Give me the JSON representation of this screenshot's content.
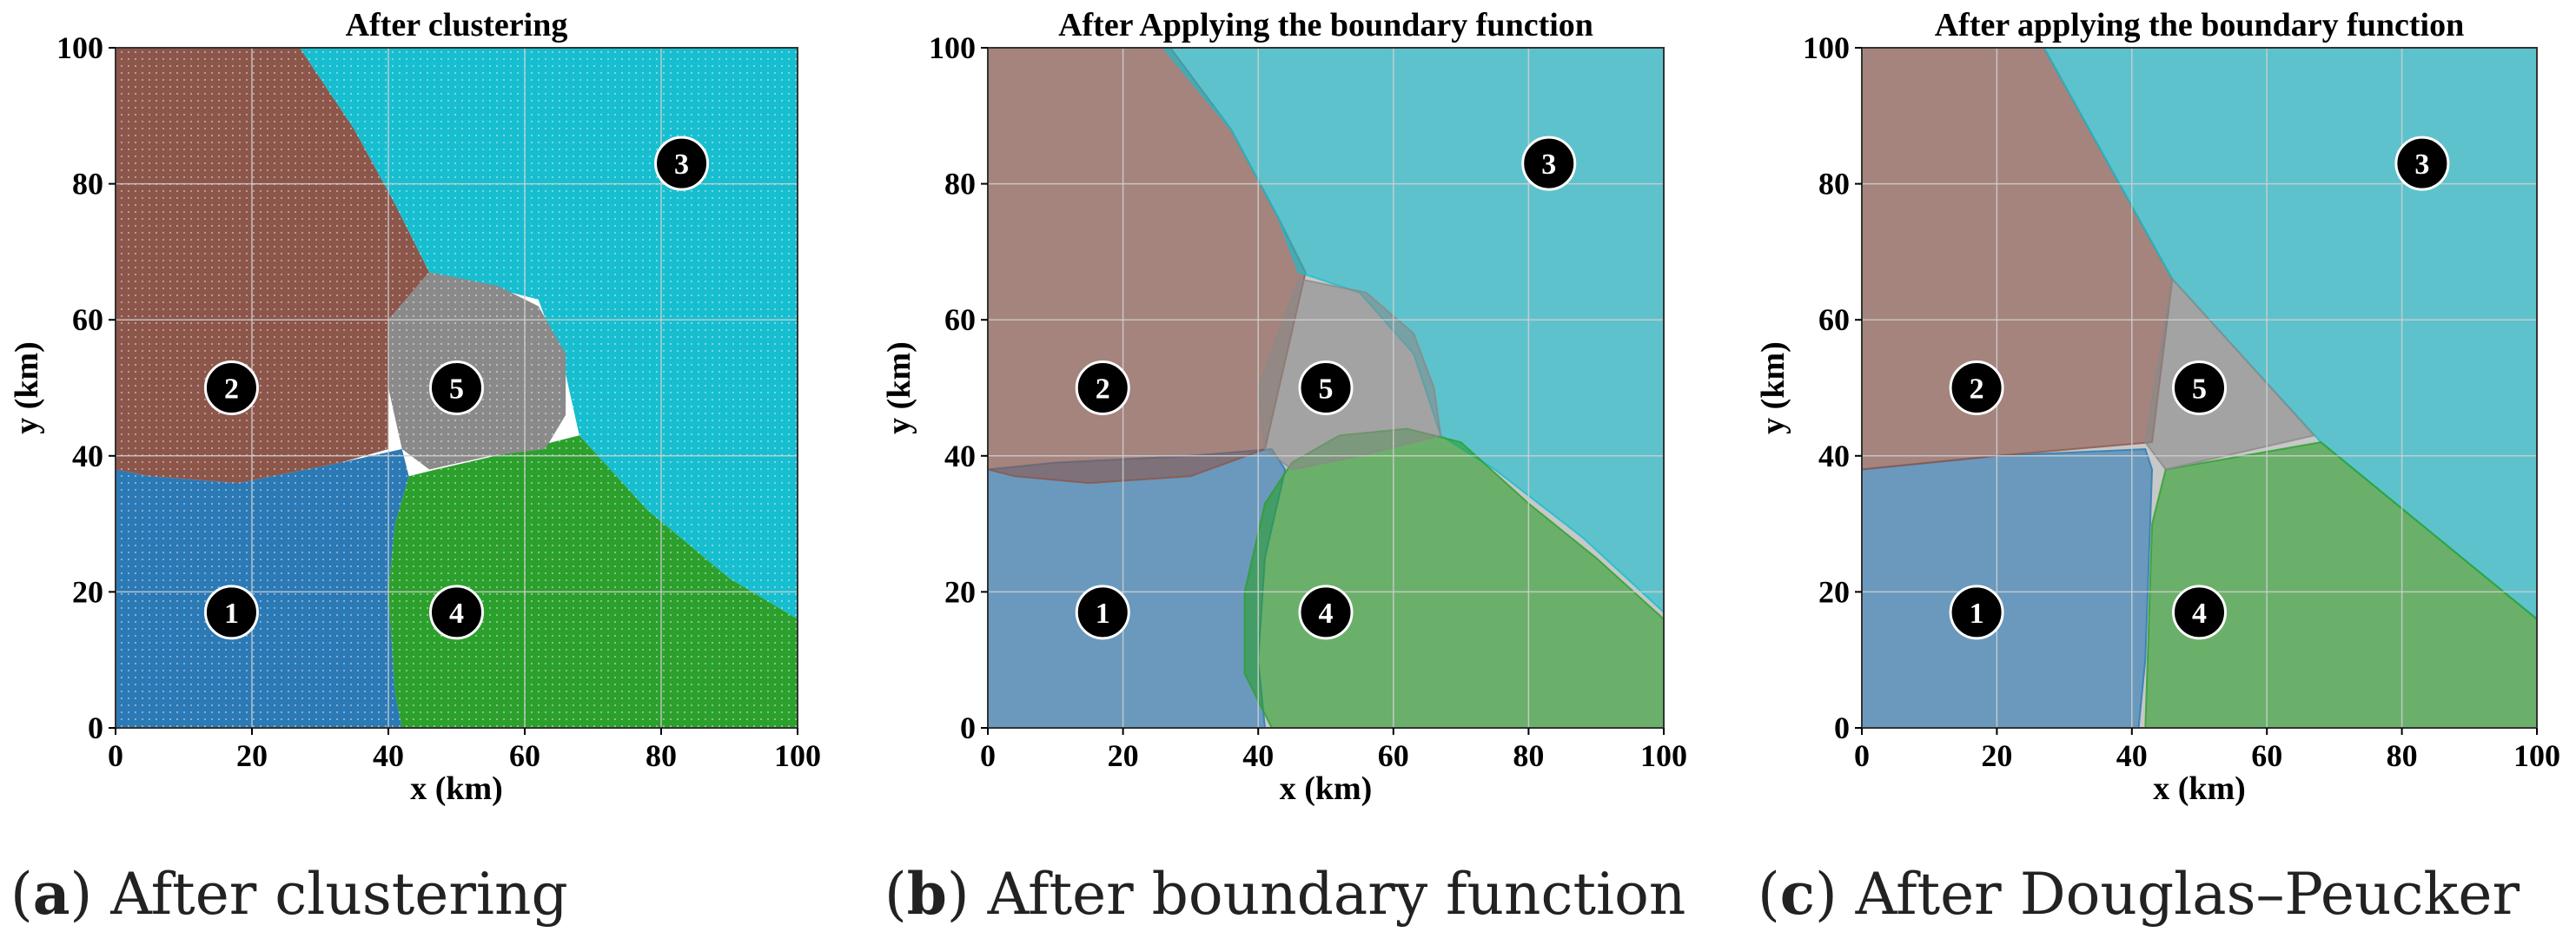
{
  "captions": [
    {
      "letter": "a",
      "text": " After clustering"
    },
    {
      "letter": "b",
      "text": " After boundary function"
    },
    {
      "letter": "c",
      "text": " After Douglas–Peucker"
    }
  ],
  "colors": {
    "cluster1": "#2b79b5",
    "cluster2": "#8c564b",
    "cluster3": "#17becf",
    "cluster4": "#2ca02c",
    "cluster5": "#8a8a8a"
  },
  "chart_data": [
    {
      "type": "scatter",
      "title": "After clustering",
      "xlabel": "x (km)",
      "ylabel": "y (km)",
      "xlim": [
        0,
        100
      ],
      "ylim": [
        0,
        100
      ],
      "xticks": [
        0,
        20,
        40,
        60,
        80,
        100
      ],
      "yticks": [
        0,
        20,
        40,
        60,
        80,
        100
      ],
      "grid": true,
      "rendering": "dense point grid colored by cluster",
      "markers": [
        {
          "label": "1",
          "x": 17,
          "y": 17
        },
        {
          "label": "2",
          "x": 17,
          "y": 50
        },
        {
          "label": "3",
          "x": 83,
          "y": 83
        },
        {
          "label": "4",
          "x": 50,
          "y": 17
        },
        {
          "label": "5",
          "x": 50,
          "y": 50
        }
      ],
      "regions": [
        {
          "cluster": "1",
          "polygon": [
            [
              0,
              0
            ],
            [
              42,
              0
            ],
            [
              41,
              5
            ],
            [
              40,
              20
            ],
            [
              41,
              30
            ],
            [
              43,
              37
            ],
            [
              42,
              41
            ],
            [
              33,
              39
            ],
            [
              18,
              36
            ],
            [
              5,
              37
            ],
            [
              0,
              38
            ]
          ]
        },
        {
          "cluster": "2",
          "polygon": [
            [
              0,
              100
            ],
            [
              27,
              100
            ],
            [
              35,
              88
            ],
            [
              41,
              77
            ],
            [
              46,
              67
            ],
            [
              40,
              60
            ],
            [
              40,
              41
            ],
            [
              33,
              39
            ],
            [
              18,
              36
            ],
            [
              5,
              37
            ],
            [
              0,
              38
            ]
          ]
        },
        {
          "cluster": "3",
          "polygon": [
            [
              27,
              100
            ],
            [
              100,
              100
            ],
            [
              100,
              16
            ],
            [
              90,
              22
            ],
            [
              78,
              32
            ],
            [
              68,
              43
            ],
            [
              66,
              52
            ],
            [
              62,
              63
            ],
            [
              46,
              67
            ],
            [
              41,
              77
            ],
            [
              35,
              88
            ]
          ]
        },
        {
          "cluster": "4",
          "polygon": [
            [
              42,
              0
            ],
            [
              100,
              0
            ],
            [
              100,
              16
            ],
            [
              90,
              22
            ],
            [
              78,
              32
            ],
            [
              68,
              43
            ],
            [
              60,
              41
            ],
            [
              47,
              38
            ],
            [
              43,
              37
            ],
            [
              41,
              30
            ],
            [
              40,
              20
            ],
            [
              41,
              5
            ]
          ]
        },
        {
          "cluster": "5",
          "polygon": [
            [
              46,
              67
            ],
            [
              56,
              65
            ],
            [
              62,
              62
            ],
            [
              66,
              55
            ],
            [
              66,
              46
            ],
            [
              63,
              41
            ],
            [
              55,
              40
            ],
            [
              46,
              38
            ],
            [
              42,
              41
            ],
            [
              40,
              50
            ],
            [
              40,
              60
            ]
          ]
        }
      ]
    },
    {
      "type": "area",
      "title": "After Applying the boundary function",
      "xlabel": "x (km)",
      "ylabel": "y (km)",
      "xlim": [
        0,
        100
      ],
      "ylim": [
        0,
        100
      ],
      "xticks": [
        0,
        20,
        40,
        60,
        80,
        100
      ],
      "yticks": [
        0,
        20,
        40,
        60,
        80,
        100
      ],
      "grid": true,
      "rendering": "semi-transparent smoothed boundary polygons",
      "markers": [
        {
          "label": "1",
          "x": 17,
          "y": 17
        },
        {
          "label": "2",
          "x": 17,
          "y": 50
        },
        {
          "label": "3",
          "x": 83,
          "y": 83
        },
        {
          "label": "4",
          "x": 50,
          "y": 17
        },
        {
          "label": "5",
          "x": 50,
          "y": 50
        }
      ],
      "regions": [
        {
          "cluster": "1",
          "polygon": [
            [
              0,
              0
            ],
            [
              41,
              0
            ],
            [
              40,
              10
            ],
            [
              41,
              25
            ],
            [
              44,
              38
            ],
            [
              42,
              41
            ],
            [
              30,
              40
            ],
            [
              10,
              39
            ],
            [
              0,
              38
            ]
          ]
        },
        {
          "cluster": "2",
          "polygon": [
            [
              0,
              100
            ],
            [
              27,
              100
            ],
            [
              36,
              88
            ],
            [
              43,
              75
            ],
            [
              47,
              67
            ],
            [
              41,
              41
            ],
            [
              30,
              37
            ],
            [
              15,
              36
            ],
            [
              4,
              37
            ],
            [
              0,
              38
            ]
          ]
        },
        {
          "cluster": "3",
          "polygon": [
            [
              26,
              100
            ],
            [
              100,
              100
            ],
            [
              100,
              17
            ],
            [
              88,
              28
            ],
            [
              75,
              38
            ],
            [
              67,
              43
            ],
            [
              63,
              55
            ],
            [
              55,
              64
            ],
            [
              46,
              67
            ],
            [
              43,
              75
            ],
            [
              36,
              88
            ]
          ]
        },
        {
          "cluster": "4",
          "polygon": [
            [
              42,
              0
            ],
            [
              100,
              0
            ],
            [
              100,
              16
            ],
            [
              90,
              25
            ],
            [
              80,
              33
            ],
            [
              70,
              42
            ],
            [
              62,
              44
            ],
            [
              52,
              43
            ],
            [
              45,
              39
            ],
            [
              41,
              33
            ],
            [
              38,
              20
            ],
            [
              38,
              8
            ]
          ]
        },
        {
          "cluster": "5",
          "polygon": [
            [
              46,
              66
            ],
            [
              56,
              64
            ],
            [
              63,
              58
            ],
            [
              66,
              50
            ],
            [
              67,
              43
            ],
            [
              55,
              40
            ],
            [
              45,
              38
            ],
            [
              41,
              41
            ],
            [
              40,
              50
            ]
          ]
        }
      ]
    },
    {
      "type": "area",
      "title": "After applying the boundary function",
      "xlabel": "x (km)",
      "ylabel": "y (km)",
      "xlim": [
        0,
        100
      ],
      "ylim": [
        0,
        100
      ],
      "xticks": [
        0,
        20,
        40,
        60,
        80,
        100
      ],
      "yticks": [
        0,
        20,
        40,
        60,
        80,
        100
      ],
      "grid": true,
      "rendering": "simplified polygons",
      "markers": [
        {
          "label": "1",
          "x": 17,
          "y": 17
        },
        {
          "label": "2",
          "x": 17,
          "y": 50
        },
        {
          "label": "3",
          "x": 83,
          "y": 83
        },
        {
          "label": "4",
          "x": 50,
          "y": 17
        },
        {
          "label": "5",
          "x": 50,
          "y": 50
        }
      ],
      "regions": [
        {
          "cluster": "1",
          "polygon": [
            [
              0,
              0
            ],
            [
              41,
              0
            ],
            [
              42,
              10
            ],
            [
              43,
              38
            ],
            [
              42,
              41
            ],
            [
              20,
              40
            ],
            [
              0,
              38
            ]
          ]
        },
        {
          "cluster": "2",
          "polygon": [
            [
              0,
              100
            ],
            [
              27,
              100
            ],
            [
              46,
              66
            ],
            [
              43,
              42
            ],
            [
              20,
              40
            ],
            [
              0,
              38
            ]
          ]
        },
        {
          "cluster": "3",
          "polygon": [
            [
              27,
              100
            ],
            [
              100,
              100
            ],
            [
              100,
              16
            ],
            [
              68,
              42
            ],
            [
              46,
              66
            ]
          ]
        },
        {
          "cluster": "4",
          "polygon": [
            [
              42,
              0
            ],
            [
              100,
              0
            ],
            [
              100,
              16
            ],
            [
              68,
              42
            ],
            [
              45,
              38
            ],
            [
              43,
              30
            ]
          ]
        },
        {
          "cluster": "5",
          "polygon": [
            [
              46,
              66
            ],
            [
              67,
              43
            ],
            [
              45,
              38
            ],
            [
              42,
              42
            ]
          ]
        }
      ]
    }
  ]
}
